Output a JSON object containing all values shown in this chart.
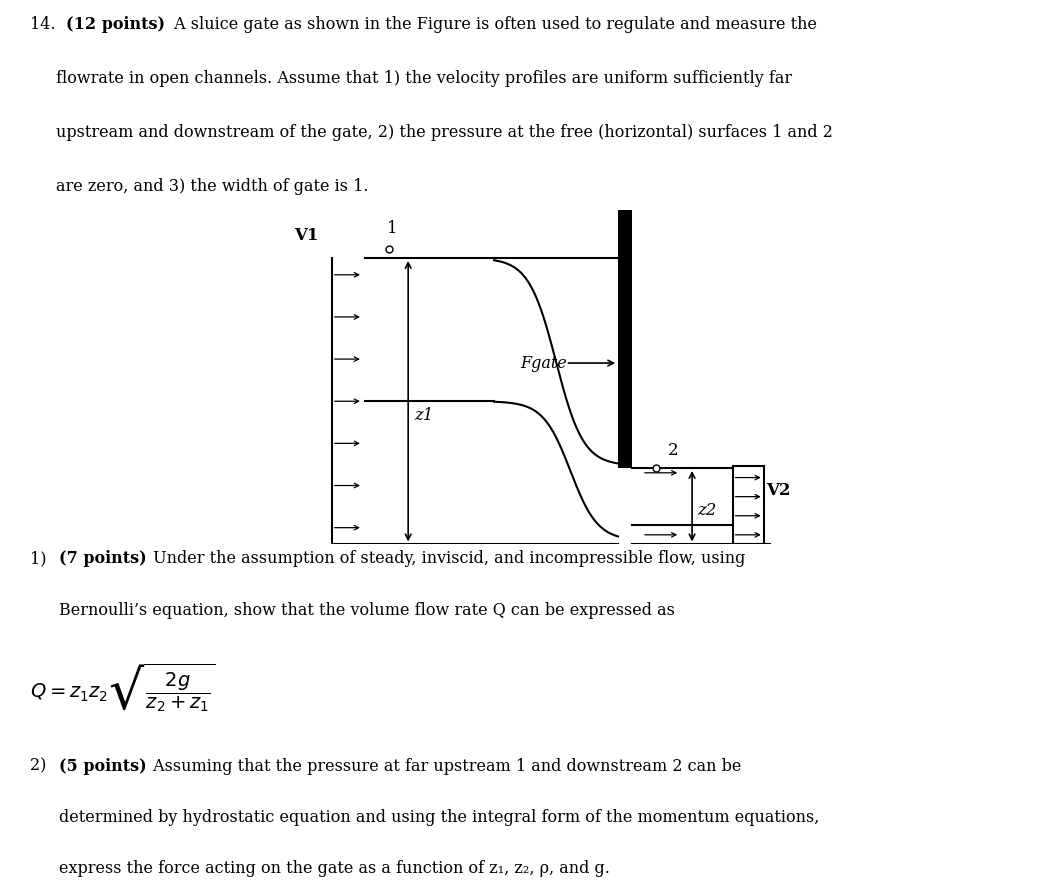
{
  "bg_color": "#ffffff",
  "text_color": "#000000",
  "fig_width": 10.24,
  "fig_height": 8.35,
  "lc": "#000000",
  "lw": 1.5,
  "top_text_normal": "14. ",
  "top_text_bold": "(12 points)",
  "top_text_rest": " A sluice gate as shown in the Figure is often used to regulate and measure the\nflowrate in open channels. Assume that 1) the velocity profiles are uniform sufficiently far\nupstream and downstream of the gate, 2) the pressure at the free (horizontal) surfaces 1 and 2\nare zero, and 3) the width of gate is 1.",
  "sub1_pre": "1) ",
  "sub1_bold": "(7 points)",
  "sub1_rest": " Under the assumption of steady, inviscid, and incompressible flow, using\nBernoulli’s equation, show that the volume flow rate Q can be expressed as",
  "sub2_pre": "2) ",
  "sub2_bold": "(5 points)",
  "sub2_rest": " Assuming that the pressure at far upstream 1 and downstream 2 can be\ndetermined by hydrostatic equation and using the integral form of the momentum equations,\nexpress the force acting on the gate as a function of z₁, z₂, ρ, and g."
}
